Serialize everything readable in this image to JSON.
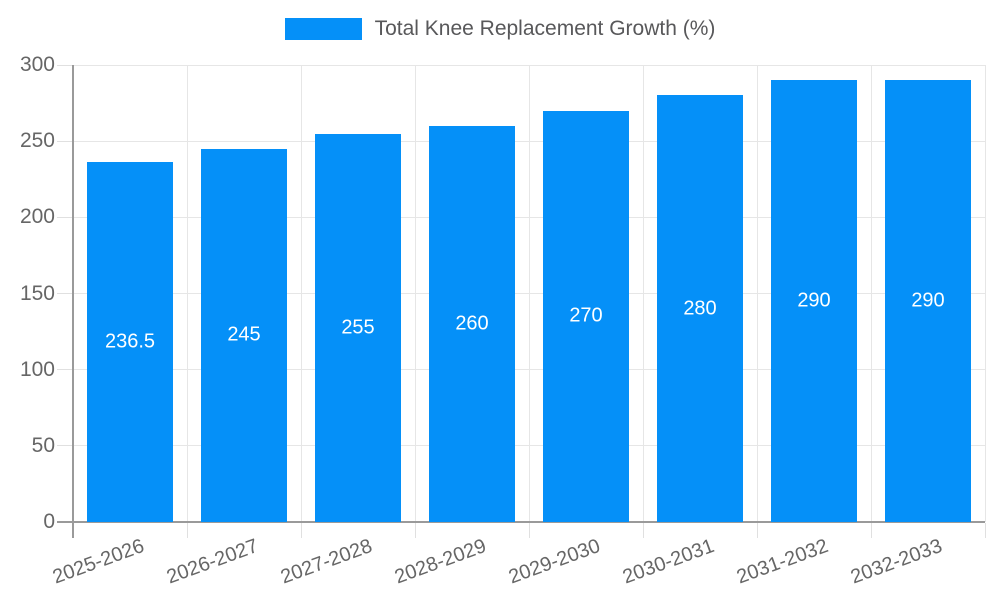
{
  "legend": {
    "label": "Total Knee Replacement Growth (%)"
  },
  "chart_data": {
    "type": "bar",
    "title": "",
    "series_name": "Total Knee Replacement Growth (%)",
    "categories": [
      "2025-2026",
      "2026-2027",
      "2027-2028",
      "2028-2029",
      "2029-2030",
      "2030-2031",
      "2031-2032",
      "2032-2033"
    ],
    "values": [
      236.5,
      245,
      255,
      260,
      270,
      280,
      290,
      290
    ],
    "value_labels": [
      "236.5",
      "245",
      "255",
      "260",
      "270",
      "280",
      "290",
      "290"
    ],
    "xlabel": "",
    "ylabel": "",
    "ylim": [
      0,
      300
    ],
    "yticks": [
      0,
      50,
      100,
      150,
      200,
      250,
      300
    ],
    "grid": true,
    "legend_position": "top",
    "x_label_rotation_deg": -20,
    "colors": {
      "bar": "#0590F8",
      "value_label": "#FFFFFF",
      "axis_line": "#9A9A9A",
      "gridline": "#E6E6E6",
      "tick": "#E0E0E0",
      "axis_text": "#666666",
      "legend_text": "#58585A",
      "background": "#FFFFFF"
    }
  }
}
